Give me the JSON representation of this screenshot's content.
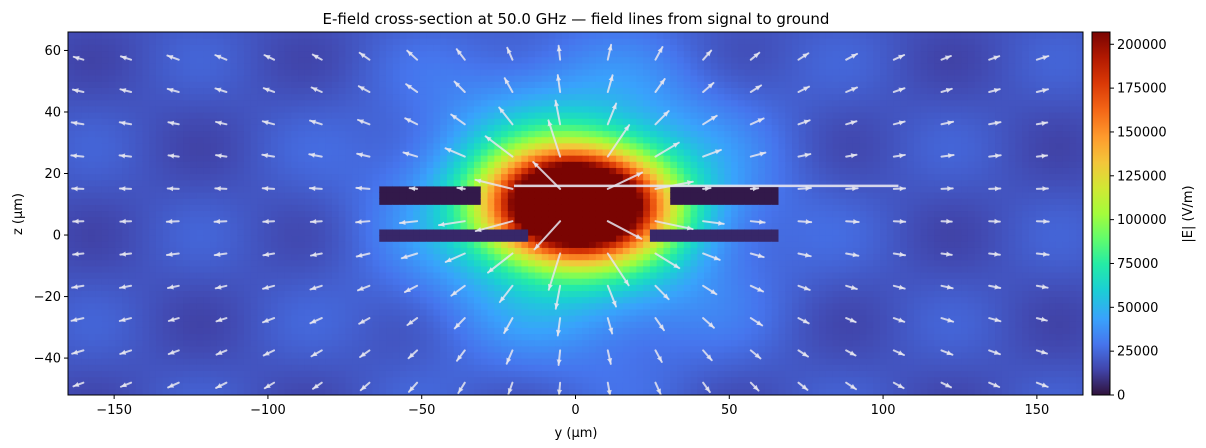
{
  "chart_data": {
    "type": "heatmap",
    "title": "E-field cross-section at 50.0 GHz — field lines from signal to ground",
    "xlabel": "y (µm)",
    "ylabel": "z (µm)",
    "xlim": [
      -165,
      165
    ],
    "ylim": [
      -52,
      66
    ],
    "xticks": [
      -150,
      -100,
      -50,
      0,
      50,
      100,
      150
    ],
    "yticks": [
      -40,
      -20,
      0,
      20,
      40,
      60
    ],
    "colorbar": {
      "label": "|E| (V/m)",
      "range": [
        0,
        207000
      ],
      "ticks": [
        0,
        25000,
        50000,
        75000,
        100000,
        125000,
        150000,
        175000,
        200000
      ],
      "colormap": "turbo"
    },
    "field": {
      "description": "|E| magnitude concentrated around the signal conductor near (0, 10) µm, decaying outward; arrows show field direction",
      "peak_value": 207000,
      "peak_center": [
        0,
        10
      ],
      "signal_trace": {
        "y_range": [
          -63,
          65
        ],
        "z": 13
      },
      "ground_strips": [
        {
          "y_range": [
            -63,
            -15
          ],
          "z": 0
        },
        {
          "y_range": [
            25,
            65
          ],
          "z": 0
        }
      ],
      "arrow_color": "#e6e6f0"
    }
  }
}
